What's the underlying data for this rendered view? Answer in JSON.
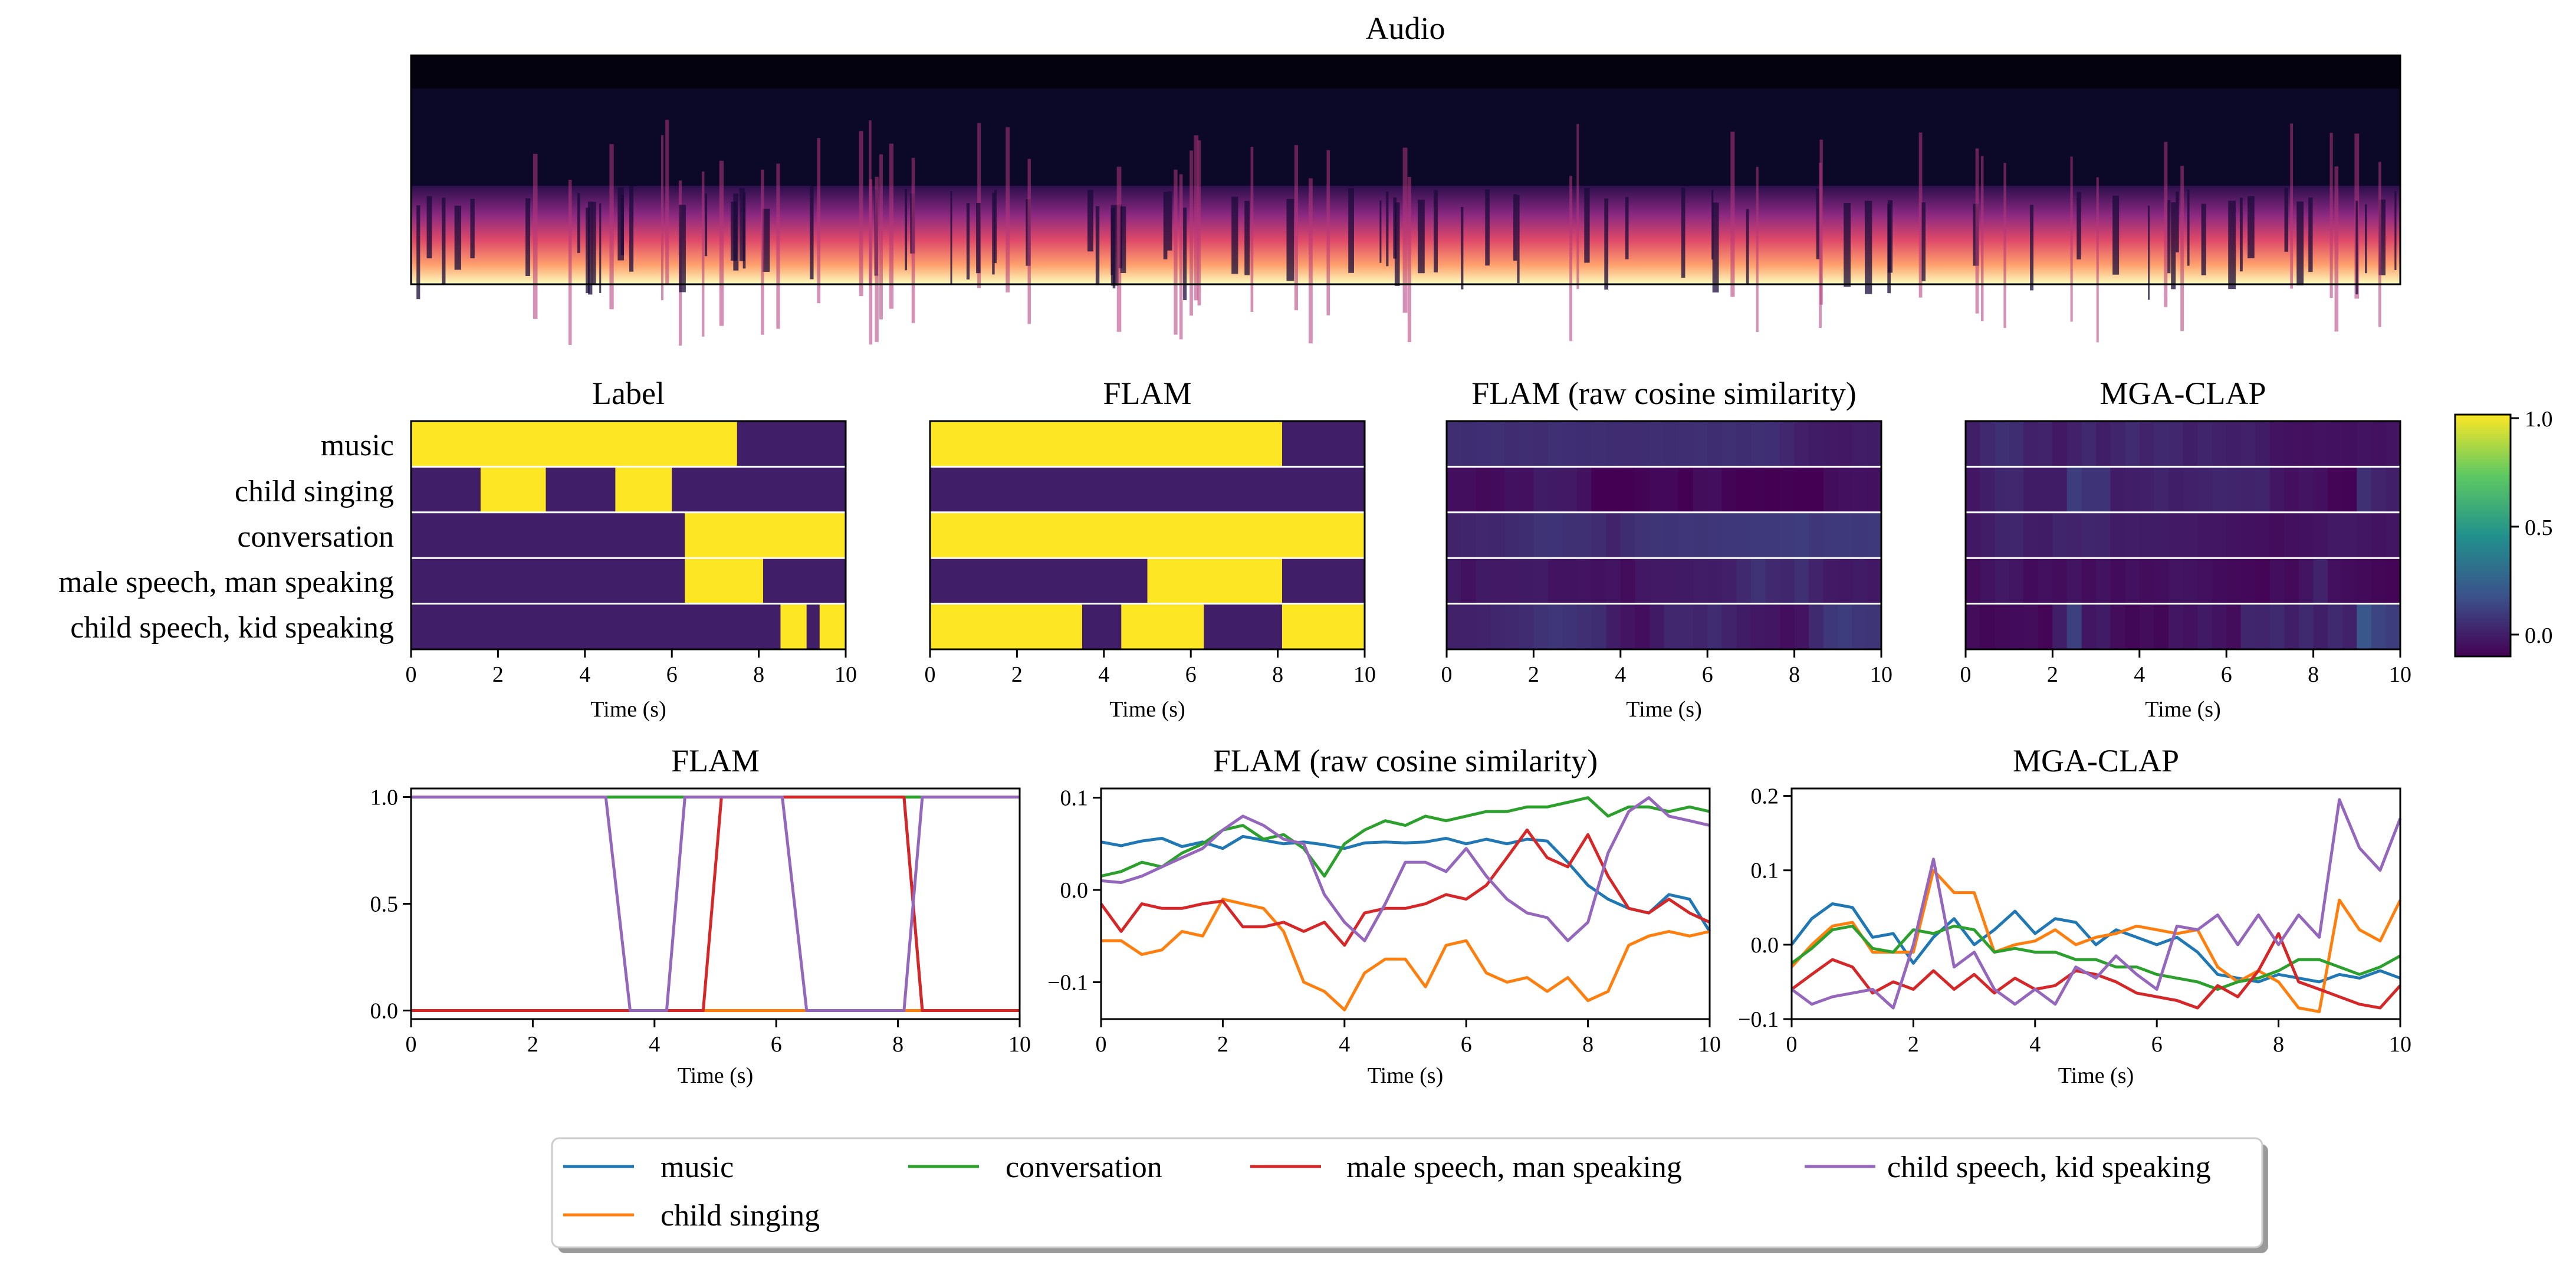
{
  "figure": {
    "legend": [
      "music",
      "child singing",
      "conversation",
      "male speech, man speaking",
      "child speech, kid speaking"
    ],
    "series_colors": [
      "#1f77b4",
      "#ff7f0e",
      "#2ca02c",
      "#d62728",
      "#9467bd"
    ],
    "colorbar": {
      "colormap": "viridis",
      "ticks": [
        "1.0",
        "0.5",
        "0.0"
      ],
      "range": [
        -0.1,
        1.0
      ]
    }
  },
  "chart_data": [
    {
      "type": "heatmap",
      "title": "Audio",
      "description_kind": "spectrogram",
      "colormap": "magma"
    },
    {
      "type": "heatmap",
      "title": "Label",
      "xlabel": "Time (s)",
      "xlim": [
        0,
        10
      ],
      "xticks": [
        "0",
        "2",
        "4",
        "6",
        "8",
        "10"
      ],
      "rows": [
        "music",
        "child singing",
        "conversation",
        "male speech, man speaking",
        "child speech, kid speaking"
      ],
      "active_segments": [
        [
          [
            0,
            7.5
          ]
        ],
        [
          [
            1.6,
            3.1
          ],
          [
            4.7,
            6.0
          ]
        ],
        [
          [
            6.3,
            10
          ]
        ],
        [
          [
            6.3,
            8.1
          ]
        ],
        [
          [
            8.5,
            9.1
          ],
          [
            9.4,
            10
          ]
        ]
      ]
    },
    {
      "type": "heatmap",
      "title": "FLAM",
      "xlabel": "Time (s)",
      "xlim": [
        0,
        10
      ],
      "xticks": [
        "0",
        "2",
        "4",
        "6",
        "8",
        "10"
      ],
      "rows": [
        "music",
        "child singing",
        "conversation",
        "male speech, man speaking",
        "child speech, kid speaking"
      ],
      "active_segments": [
        [
          [
            0,
            8.1
          ]
        ],
        [],
        [
          [
            0,
            10
          ]
        ],
        [
          [
            5.0,
            8.1
          ]
        ],
        [
          [
            0,
            3.5
          ],
          [
            4.4,
            6.3
          ],
          [
            8.1,
            10
          ]
        ]
      ]
    },
    {
      "type": "heatmap",
      "title": "FLAM (raw cosine similarity)",
      "xlabel": "Time (s)",
      "xlim": [
        0,
        10
      ],
      "xticks": [
        "0",
        "2",
        "4",
        "6",
        "8",
        "10"
      ],
      "rows": [
        "music",
        "child singing",
        "conversation",
        "male speech, man speaking",
        "child speech, kid speaking"
      ],
      "value_source": "FLAM (raw cosine similarity) line series"
    },
    {
      "type": "heatmap",
      "title": "MGA-CLAP",
      "xlabel": "Time (s)",
      "xlim": [
        0,
        10
      ],
      "xticks": [
        "0",
        "2",
        "4",
        "6",
        "8",
        "10"
      ],
      "rows": [
        "music",
        "child singing",
        "conversation",
        "male speech, man speaking",
        "child speech, kid speaking"
      ],
      "value_source": "MGA-CLAP line series"
    },
    {
      "type": "line",
      "title": "FLAM",
      "xlabel": "Time (s)",
      "xlim": [
        0,
        10
      ],
      "ylim": [
        -0.04,
        1.04
      ],
      "xticks": [
        "0",
        "2",
        "4",
        "6",
        "8",
        "10"
      ],
      "yticks": [
        "0.0",
        "0.5",
        "1.0"
      ],
      "series": [
        {
          "name": "music",
          "points": [
            [
              0,
              1
            ],
            [
              8.1,
              1
            ],
            [
              8.4,
              0
            ],
            [
              10,
              0
            ]
          ]
        },
        {
          "name": "child singing",
          "points": [
            [
              0,
              0
            ],
            [
              10,
              0
            ]
          ]
        },
        {
          "name": "conversation",
          "points": [
            [
              0,
              1
            ],
            [
              10,
              1
            ]
          ]
        },
        {
          "name": "male speech, man speaking",
          "points": [
            [
              0,
              0
            ],
            [
              4.8,
              0
            ],
            [
              5.1,
              1
            ],
            [
              8.1,
              1
            ],
            [
              8.4,
              0
            ],
            [
              10,
              0
            ]
          ]
        },
        {
          "name": "child speech, kid speaking",
          "points": [
            [
              0,
              1
            ],
            [
              3.2,
              1
            ],
            [
              3.6,
              0
            ],
            [
              4.2,
              0
            ],
            [
              4.5,
              1
            ],
            [
              6.1,
              1
            ],
            [
              6.5,
              0
            ],
            [
              8.1,
              0
            ],
            [
              8.4,
              1
            ],
            [
              10,
              1
            ]
          ]
        }
      ]
    },
    {
      "type": "line",
      "title": "FLAM (raw cosine similarity)",
      "xlabel": "Time (s)",
      "xlim": [
        0,
        10
      ],
      "ylim": [
        -0.14,
        0.11
      ],
      "xticks": [
        "0",
        "2",
        "4",
        "6",
        "8",
        "10"
      ],
      "yticks": [
        "0.1",
        "0.0",
        "−0.1"
      ],
      "x": [
        0,
        0.33,
        0.67,
        1,
        1.33,
        1.67,
        2,
        2.33,
        2.67,
        3,
        3.33,
        3.67,
        4,
        4.33,
        4.67,
        5,
        5.33,
        5.67,
        6,
        6.33,
        6.67,
        7,
        7.33,
        7.67,
        8,
        8.33,
        8.67,
        9,
        9.33,
        9.67,
        10
      ],
      "series": [
        {
          "name": "music",
          "values": [
            0.052,
            0.048,
            0.053,
            0.056,
            0.047,
            0.052,
            0.045,
            0.058,
            0.054,
            0.05,
            0.052,
            0.049,
            0.045,
            0.051,
            0.052,
            0.051,
            0.052,
            0.056,
            0.05,
            0.055,
            0.05,
            0.055,
            0.053,
            0.03,
            0.005,
            -0.01,
            -0.02,
            -0.025,
            -0.005,
            -0.01,
            -0.045
          ]
        },
        {
          "name": "child singing",
          "values": [
            -0.055,
            -0.055,
            -0.07,
            -0.065,
            -0.045,
            -0.05,
            -0.01,
            -0.015,
            -0.02,
            -0.045,
            -0.1,
            -0.11,
            -0.13,
            -0.09,
            -0.075,
            -0.075,
            -0.105,
            -0.06,
            -0.055,
            -0.09,
            -0.1,
            -0.095,
            -0.11,
            -0.095,
            -0.12,
            -0.11,
            -0.06,
            -0.05,
            -0.045,
            -0.05,
            -0.045
          ]
        },
        {
          "name": "conversation",
          "values": [
            0.015,
            0.02,
            0.03,
            0.025,
            0.04,
            0.05,
            0.065,
            0.07,
            0.055,
            0.06,
            0.045,
            0.015,
            0.05,
            0.065,
            0.075,
            0.07,
            0.08,
            0.075,
            0.08,
            0.085,
            0.085,
            0.09,
            0.09,
            0.095,
            0.1,
            0.08,
            0.09,
            0.09,
            0.085,
            0.09,
            0.085
          ]
        },
        {
          "name": "male speech, man speaking",
          "values": [
            -0.015,
            -0.045,
            -0.015,
            -0.02,
            -0.02,
            -0.015,
            -0.012,
            -0.04,
            -0.04,
            -0.035,
            -0.045,
            -0.035,
            -0.06,
            -0.025,
            -0.02,
            -0.02,
            -0.015,
            -0.005,
            -0.01,
            0.005,
            0.035,
            0.065,
            0.035,
            0.025,
            0.06,
            0.015,
            -0.02,
            -0.025,
            -0.01,
            -0.025,
            -0.035
          ]
        },
        {
          "name": "child speech, kid speaking",
          "values": [
            0.01,
            0.008,
            0.015,
            0.025,
            0.035,
            0.045,
            0.065,
            0.08,
            0.07,
            0.055,
            0.05,
            -0.005,
            -0.035,
            -0.055,
            -0.015,
            0.03,
            0.03,
            0.02,
            0.045,
            0.015,
            -0.01,
            -0.025,
            -0.03,
            -0.055,
            -0.035,
            0.04,
            0.085,
            0.1,
            0.08,
            0.075,
            0.07
          ]
        }
      ]
    },
    {
      "type": "line",
      "title": "MGA-CLAP",
      "xlabel": "Time (s)",
      "xlim": [
        0,
        10
      ],
      "ylim": [
        -0.1,
        0.21
      ],
      "xticks": [
        "0",
        "2",
        "4",
        "6",
        "8",
        "10"
      ],
      "yticks": [
        "0.2",
        "0.1",
        "0.0",
        "−0.1"
      ],
      "x": [
        0,
        0.33,
        0.67,
        1,
        1.33,
        1.67,
        2,
        2.33,
        2.67,
        3,
        3.33,
        3.67,
        4,
        4.33,
        4.67,
        5,
        5.33,
        5.67,
        6,
        6.33,
        6.67,
        7,
        7.33,
        7.67,
        8,
        8.33,
        8.67,
        9,
        9.33,
        9.67,
        10
      ],
      "series": [
        {
          "name": "music",
          "values": [
            0.0,
            0.035,
            0.055,
            0.05,
            0.01,
            0.015,
            -0.025,
            0.01,
            0.035,
            0.0,
            0.02,
            0.045,
            0.015,
            0.035,
            0.03,
            0.0,
            0.02,
            0.01,
            0.0,
            0.01,
            -0.01,
            -0.04,
            -0.045,
            -0.05,
            -0.04,
            -0.045,
            -0.05,
            -0.04,
            -0.045,
            -0.035,
            -0.045
          ]
        },
        {
          "name": "child singing",
          "values": [
            -0.03,
            0.0,
            0.025,
            0.03,
            -0.01,
            -0.01,
            -0.01,
            0.1,
            0.07,
            0.07,
            -0.01,
            0.0,
            0.005,
            0.02,
            0.0,
            0.01,
            0.015,
            0.025,
            0.02,
            0.015,
            0.02,
            -0.03,
            -0.05,
            -0.035,
            -0.05,
            -0.085,
            -0.09,
            0.06,
            0.02,
            0.005,
            0.06
          ]
        },
        {
          "name": "conversation",
          "values": [
            -0.025,
            -0.005,
            0.02,
            0.025,
            -0.005,
            -0.01,
            0.02,
            0.015,
            0.025,
            0.02,
            -0.01,
            -0.005,
            -0.01,
            -0.01,
            -0.02,
            -0.02,
            -0.03,
            -0.03,
            -0.04,
            -0.045,
            -0.05,
            -0.06,
            -0.05,
            -0.045,
            -0.035,
            -0.02,
            -0.02,
            -0.03,
            -0.04,
            -0.03,
            -0.015
          ]
        },
        {
          "name": "male speech, man speaking",
          "values": [
            -0.06,
            -0.04,
            -0.02,
            -0.03,
            -0.065,
            -0.05,
            -0.06,
            -0.035,
            -0.06,
            -0.04,
            -0.065,
            -0.045,
            -0.06,
            -0.055,
            -0.035,
            -0.04,
            -0.05,
            -0.065,
            -0.07,
            -0.075,
            -0.085,
            -0.055,
            -0.07,
            -0.035,
            0.015,
            -0.05,
            -0.06,
            -0.07,
            -0.08,
            -0.085,
            -0.055
          ]
        },
        {
          "name": "child speech, kid speaking",
          "values": [
            -0.06,
            -0.08,
            -0.07,
            -0.065,
            -0.06,
            -0.085,
            0.0,
            0.115,
            -0.03,
            -0.01,
            -0.06,
            -0.08,
            -0.06,
            -0.08,
            -0.03,
            -0.045,
            -0.015,
            -0.04,
            -0.06,
            0.025,
            0.02,
            0.04,
            0.0,
            0.04,
            0.0,
            0.04,
            0.01,
            0.195,
            0.13,
            0.1,
            0.17
          ]
        }
      ]
    }
  ]
}
